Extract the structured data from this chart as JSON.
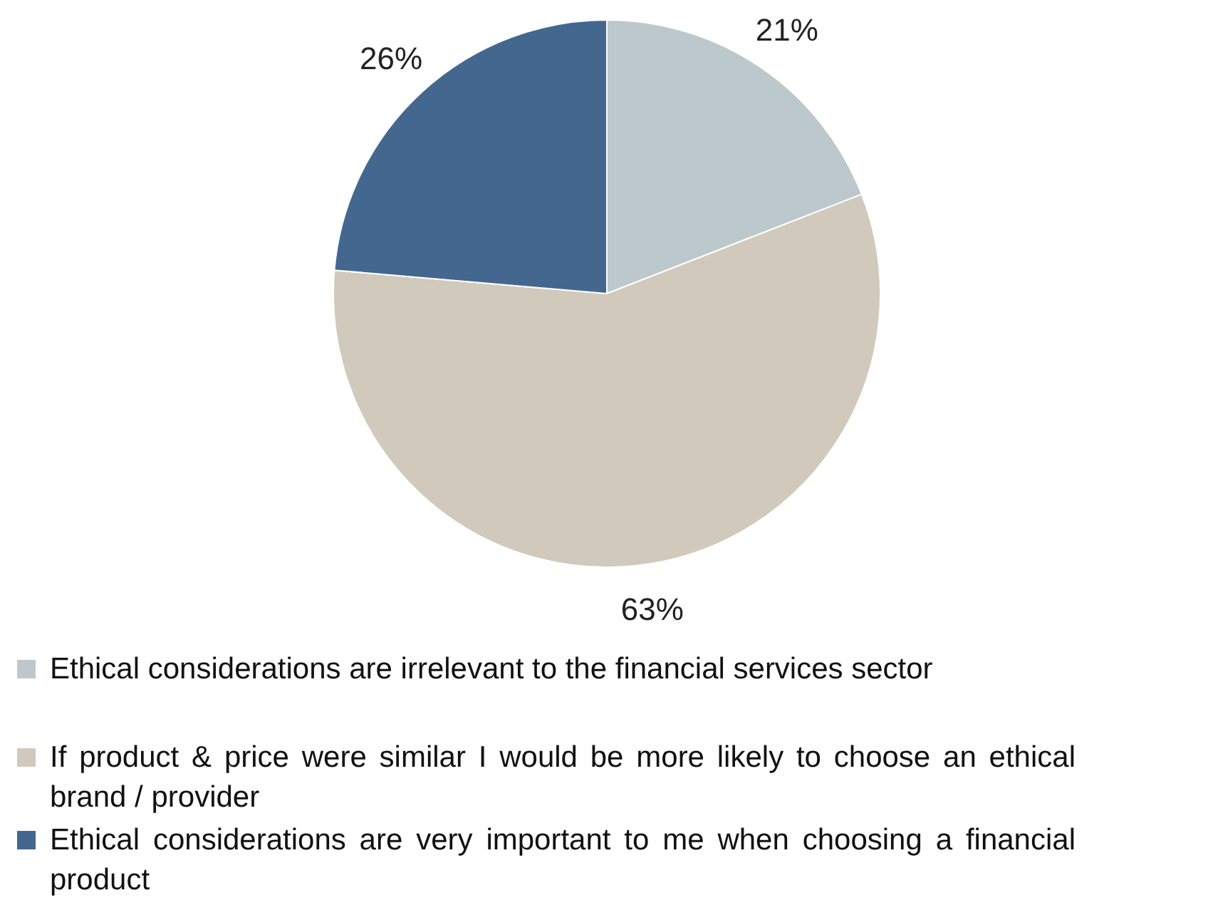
{
  "chart_data": {
    "type": "pie",
    "categories": [
      "Ethical considerations are irrelevant to the financial services sector",
      "If product & price were similar I would be more likely to choose an ethical brand / provider",
      "Ethical considerations are very important to me when choosing a financial product"
    ],
    "values": [
      21,
      63,
      26
    ],
    "value_labels": [
      "21%",
      "63%",
      "26%"
    ],
    "colors": [
      "#bcc8cc",
      "#d1c9bc",
      "#43678f"
    ],
    "legend": "bottom"
  }
}
